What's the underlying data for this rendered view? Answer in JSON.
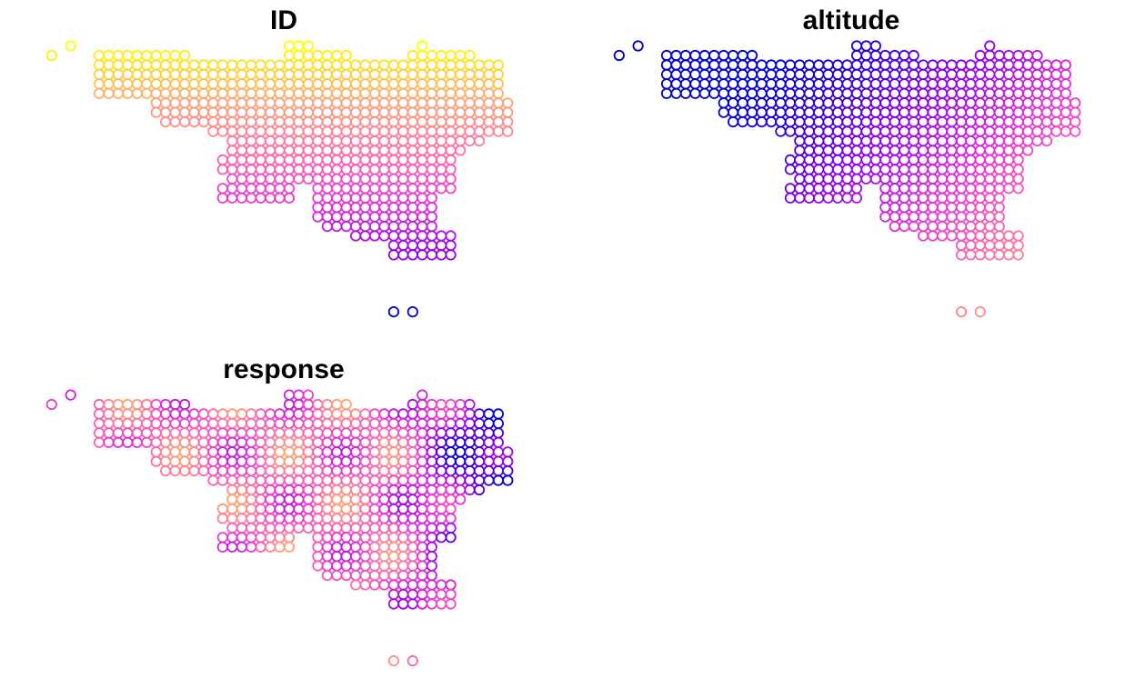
{
  "figure": {
    "palette": [
      "#0000CC",
      "#8C00E6",
      "#E42FD8",
      "#FF6CA8",
      "#FFA671",
      "#FFFF00"
    ],
    "marker": "open-circle"
  },
  "chart_data": [
    {
      "type": "scatter",
      "title": "ID",
      "variable": "ID",
      "mapping": "index",
      "xlabel": "",
      "ylabel": "",
      "grid": false,
      "legend": "none"
    },
    {
      "type": "scatter",
      "title": "altitude",
      "variable": "altitude",
      "mapping": "altitude",
      "xlabel": "",
      "ylabel": "",
      "grid": false,
      "legend": "none"
    },
    {
      "type": "scatter",
      "title": "response",
      "variable": "response",
      "mapping": "response",
      "xlabel": "",
      "ylabel": "",
      "grid": false,
      "legend": "none"
    }
  ]
}
